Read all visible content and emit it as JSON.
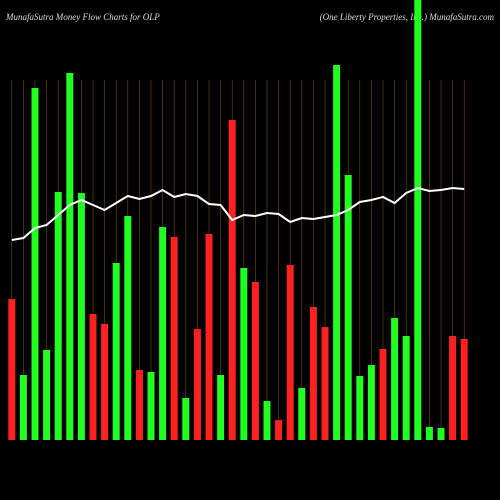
{
  "chart_data": {
    "type": "bar",
    "title": "MunafaSutra  Money Flow  Charts for OLP",
    "subtitle": "(One   Liberty Properties, Inc.) MunafaSutra.com",
    "categories": [
      null,
      null,
      null,
      null,
      null,
      null,
      null,
      null,
      null,
      null,
      null,
      null,
      null,
      null,
      null,
      null,
      null,
      null,
      null,
      null,
      null,
      null,
      null,
      null,
      null,
      null,
      null,
      null,
      null,
      null,
      null,
      null,
      null,
      null,
      null,
      null,
      null,
      null,
      null,
      null
    ],
    "series": [
      {
        "values": [
          141,
          65,
          352,
          90,
          248,
          367,
          247,
          126,
          116,
          177,
          224,
          70,
          68,
          213,
          203,
          42,
          111,
          206,
          65,
          320,
          172,
          158,
          39,
          20,
          175,
          52,
          133,
          113,
          375,
          265,
          64,
          75,
          91,
          122,
          104,
          440,
          13,
          12,
          104,
          101
        ],
        "colors": [
          "#ff2020",
          "#20ff20",
          "#20ff20",
          "#20ff20",
          "#20ff20",
          "#20ff20",
          "#20ff20",
          "#ff2020",
          "#ff2020",
          "#20ff20",
          "#20ff20",
          "#ff2020",
          "#20ff20",
          "#20ff20",
          "#ff2020",
          "#20ff20",
          "#ff2020",
          "#ff2020",
          "#20ff20",
          "#ff2020",
          "#20ff20",
          "#ff2020",
          "#20ff20",
          "#ff2020",
          "#ff2020",
          "#20ff20",
          "#ff2020",
          "#ff2020",
          "#20ff20",
          "#20ff20",
          "#20ff20",
          "#20ff20",
          "#ff2020",
          "#20ff20",
          "#20ff20",
          "#20ff20",
          "#20ff20",
          "#20ff20",
          "#ff2020",
          "#ff2020"
        ]
      },
      {
        "type": "line",
        "color": "#ffffff",
        "values": [
          200,
          202,
          212,
          215,
          225,
          235,
          240,
          235,
          230,
          237,
          244,
          241,
          244,
          250,
          243,
          246,
          244,
          236,
          235,
          220,
          225,
          224,
          227,
          226,
          218,
          222,
          221,
          223,
          225,
          230,
          238,
          240,
          243,
          237,
          247,
          252,
          249,
          250,
          252,
          251
        ]
      }
    ],
    "ylim": [
      0,
      440
    ],
    "grid_color": "#7a4a10"
  }
}
